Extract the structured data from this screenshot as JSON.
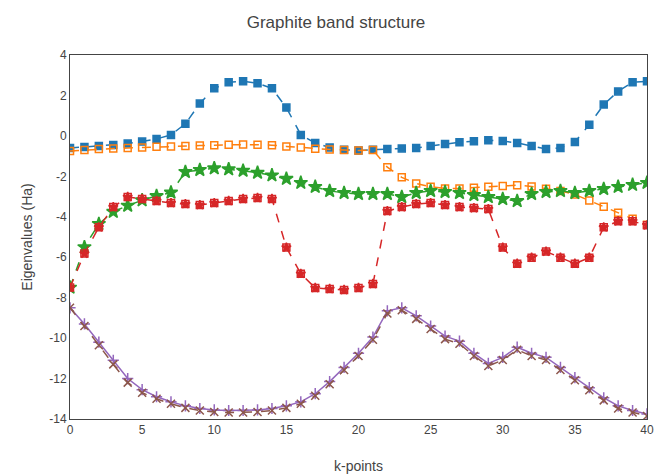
{
  "chart_data": {
    "type": "line",
    "title": "Graphite band structure",
    "xlabel": "k-points",
    "ylabel": "Eigenvalues (Ha)",
    "xlim": [
      0,
      40
    ],
    "ylim": [
      -14,
      4
    ],
    "xticks": [
      0,
      5,
      10,
      15,
      20,
      25,
      30,
      35,
      40
    ],
    "yticks": [
      -14,
      -12,
      -10,
      -8,
      -6,
      -4,
      -2,
      0,
      2,
      4
    ],
    "grid": false,
    "x": [
      0,
      1,
      2,
      3,
      4,
      5,
      6,
      7,
      8,
      9,
      10,
      11,
      12,
      13,
      14,
      15,
      16,
      17,
      18,
      19,
      20,
      21,
      22,
      23,
      24,
      25,
      26,
      27,
      28,
      29,
      30,
      31,
      32,
      33,
      34,
      35,
      36,
      37,
      38,
      39,
      40
    ],
    "series": [
      {
        "marker": "square",
        "line_style": "dashed",
        "values": [
          -0.6,
          -0.55,
          -0.5,
          -0.45,
          -0.38,
          -0.28,
          -0.15,
          0.05,
          0.6,
          1.6,
          2.35,
          2.65,
          2.7,
          2.6,
          2.35,
          1.4,
          0.05,
          -0.35,
          -0.58,
          -0.68,
          -0.72,
          -0.68,
          -0.65,
          -0.62,
          -0.6,
          -0.5,
          -0.4,
          -0.32,
          -0.26,
          -0.22,
          -0.25,
          -0.35,
          -0.5,
          -0.65,
          -0.6,
          -0.3,
          0.55,
          1.55,
          2.2,
          2.65,
          2.7
        ]
      },
      {
        "marker": "square-open",
        "line_style": "dashed",
        "values": [
          -0.75,
          -0.7,
          -0.65,
          -0.62,
          -0.6,
          -0.57,
          -0.54,
          -0.52,
          -0.5,
          -0.48,
          -0.46,
          -0.44,
          -0.43,
          -0.44,
          -0.46,
          -0.52,
          -0.58,
          -0.63,
          -0.67,
          -0.7,
          -0.72,
          -0.7,
          -1.55,
          -2.05,
          -2.35,
          -2.52,
          -2.6,
          -2.6,
          -2.56,
          -2.52,
          -2.48,
          -2.44,
          -2.5,
          -2.62,
          -2.72,
          -2.9,
          -3.2,
          -3.5,
          -3.8,
          -4.1,
          -4.4
        ]
      },
      {
        "marker": "star",
        "line_style": "dashed",
        "values": [
          -7.5,
          -5.5,
          -4.35,
          -3.75,
          -3.45,
          -3.18,
          -2.97,
          -2.8,
          -1.78,
          -1.68,
          -1.6,
          -1.65,
          -1.72,
          -1.82,
          -1.95,
          -2.12,
          -2.32,
          -2.52,
          -2.72,
          -2.82,
          -2.87,
          -2.87,
          -2.87,
          -3.02,
          -2.82,
          -2.72,
          -2.77,
          -2.82,
          -2.92,
          -3.02,
          -3.12,
          -3.22,
          -2.87,
          -2.77,
          -2.72,
          -2.82,
          -2.72,
          -2.62,
          -2.52,
          -2.42,
          -2.32
        ]
      },
      {
        "marker": "square-open-star",
        "line_style": "dashed",
        "values": [
          -7.5,
          -5.82,
          -4.52,
          -3.52,
          -3.02,
          -3.12,
          -3.22,
          -3.32,
          -3.37,
          -3.42,
          -3.32,
          -3.22,
          -3.12,
          -3.07,
          -3.12,
          -5.52,
          -6.82,
          -7.52,
          -7.57,
          -7.62,
          -7.52,
          -7.32,
          -3.72,
          -3.52,
          -3.37,
          -3.32,
          -3.42,
          -3.52,
          -3.57,
          -3.62,
          -5.52,
          -6.32,
          -6.02,
          -5.72,
          -6.02,
          -6.32,
          -6.02,
          -4.52,
          -4.22,
          -4.22,
          -4.42
        ]
      },
      {
        "marker": "cross",
        "line_style": "solid",
        "values": [
          -8.5,
          -9.3,
          -10.2,
          -11.1,
          -12.0,
          -12.55,
          -12.9,
          -13.15,
          -13.35,
          -13.48,
          -13.55,
          -13.58,
          -13.58,
          -13.55,
          -13.48,
          -13.35,
          -13.15,
          -12.75,
          -12.15,
          -11.45,
          -10.75,
          -9.95,
          -8.65,
          -8.5,
          -8.9,
          -9.4,
          -9.9,
          -10.15,
          -10.75,
          -11.25,
          -10.95,
          -10.45,
          -10.75,
          -10.95,
          -11.45,
          -11.95,
          -12.45,
          -12.95,
          -13.35,
          -13.58,
          -13.75
        ]
      },
      {
        "marker": "x",
        "line_style": "dashed",
        "values": [
          -8.5,
          -9.4,
          -10.35,
          -11.3,
          -12.2,
          -12.7,
          -13.0,
          -13.25,
          -13.45,
          -13.58,
          -13.65,
          -13.68,
          -13.68,
          -13.65,
          -13.58,
          -13.45,
          -13.25,
          -12.85,
          -12.28,
          -11.58,
          -10.88,
          -10.08,
          -8.78,
          -8.62,
          -9.05,
          -9.55,
          -10.05,
          -10.28,
          -10.88,
          -11.38,
          -11.08,
          -10.58,
          -10.88,
          -11.08,
          -11.58,
          -12.08,
          -12.58,
          -13.08,
          -13.48,
          -13.68,
          -13.85
        ]
      }
    ]
  }
}
